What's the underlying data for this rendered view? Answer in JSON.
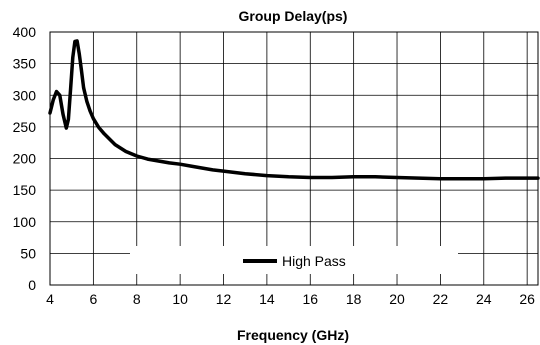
{
  "chart_data": {
    "type": "line",
    "title": "Group Delay(ps)",
    "xlabel": "Frequency (GHz)",
    "ylabel": "",
    "xlim": [
      4,
      26.5
    ],
    "ylim": [
      0,
      400
    ],
    "xticks": [
      4,
      6,
      8,
      10,
      12,
      14,
      16,
      18,
      20,
      22,
      24,
      26
    ],
    "yticks": [
      0,
      50,
      100,
      150,
      200,
      250,
      300,
      350,
      400
    ],
    "grid": true,
    "legend": "bottom-center",
    "series": [
      {
        "name": "High Pass",
        "color": "#000000",
        "x": [
          4.0,
          4.15,
          4.3,
          4.45,
          4.6,
          4.75,
          4.85,
          4.95,
          5.05,
          5.15,
          5.25,
          5.35,
          5.45,
          5.55,
          5.7,
          5.85,
          6.0,
          6.25,
          6.5,
          7.0,
          7.5,
          8.0,
          8.5,
          9.0,
          9.5,
          10.0,
          10.5,
          11.0,
          11.5,
          12.0,
          13.0,
          14.0,
          15.0,
          16.0,
          17.0,
          18.0,
          19.0,
          20.0,
          21.0,
          22.0,
          23.0,
          24.0,
          25.0,
          26.0,
          26.5
        ],
        "y": [
          272,
          293,
          306,
          300,
          270,
          248,
          262,
          310,
          360,
          385,
          386,
          365,
          340,
          312,
          290,
          275,
          263,
          249,
          239,
          222,
          211,
          204,
          199,
          196,
          193,
          191,
          188,
          185,
          182,
          180,
          176,
          173,
          171,
          170,
          170,
          171,
          171,
          170,
          169,
          168,
          168,
          168,
          169,
          169,
          169
        ]
      }
    ]
  }
}
